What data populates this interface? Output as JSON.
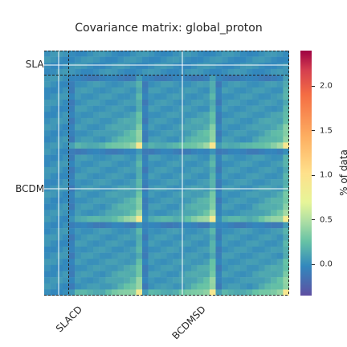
{
  "chart_data": {
    "type": "heatmap",
    "title": "Covariance matrix: global_proton",
    "x_tick_labels": [
      "SLACD",
      "BCDMSD"
    ],
    "y_tick_labels": [
      "SLACD",
      "BCDMSD"
    ],
    "colorbar": {
      "label": "% of data",
      "ticks": [
        "0.0",
        "0.5",
        "1.0",
        "1.5",
        "2.0"
      ],
      "tick_values": [
        0.0,
        0.5,
        1.0,
        1.5,
        2.0
      ],
      "range": [
        -0.35,
        2.4
      ],
      "colormap": "Spectral_r"
    },
    "blocks": [
      {
        "name": "SLACD",
        "approx_size": 4
      },
      {
        "name": "BCDMSD",
        "approx_size": 36
      }
    ],
    "grid": true,
    "block_separator": "dashed"
  }
}
